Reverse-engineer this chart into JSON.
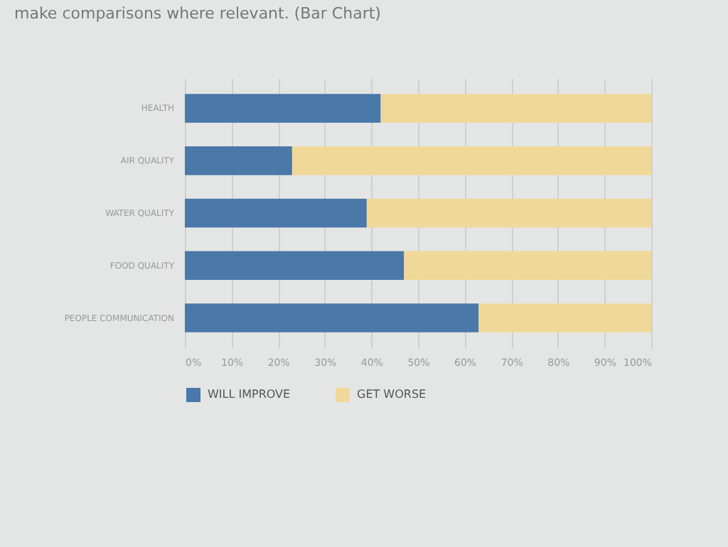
{
  "chart_data": {
    "type": "bar",
    "orientation": "horizontal",
    "stacked": true,
    "title": "make comparisons where relevant. (Bar Chart)",
    "categories": [
      "HEALTH",
      "AIR QUALITY",
      "WATER QUALITY",
      "FOOD QUALITY",
      "PEOPLE COMMUNICATION"
    ],
    "series": [
      {
        "name": "WILL IMPROVE",
        "color": "#4a78a8",
        "values": [
          42,
          23,
          39,
          47,
          63
        ]
      },
      {
        "name": "GET WORSE",
        "color": "#f0d898",
        "values": [
          58,
          77,
          61,
          53,
          37
        ]
      }
    ],
    "xlim": [
      0,
      100
    ],
    "xticks": [
      {
        "value": 0,
        "label": "0%"
      },
      {
        "value": 10,
        "label": "10%"
      },
      {
        "value": 20,
        "label": "20%"
      },
      {
        "value": 30,
        "label": "30%"
      },
      {
        "value": 40,
        "label": "40%"
      },
      {
        "value": 50,
        "label": "50%"
      },
      {
        "value": 60,
        "label": "60%"
      },
      {
        "value": 70,
        "label": "70%"
      },
      {
        "value": 80,
        "label": "80%"
      },
      {
        "value": 90,
        "label": "90%"
      },
      {
        "value": 100,
        "label": "100%"
      }
    ],
    "grid": "x",
    "legend": "bottom"
  }
}
